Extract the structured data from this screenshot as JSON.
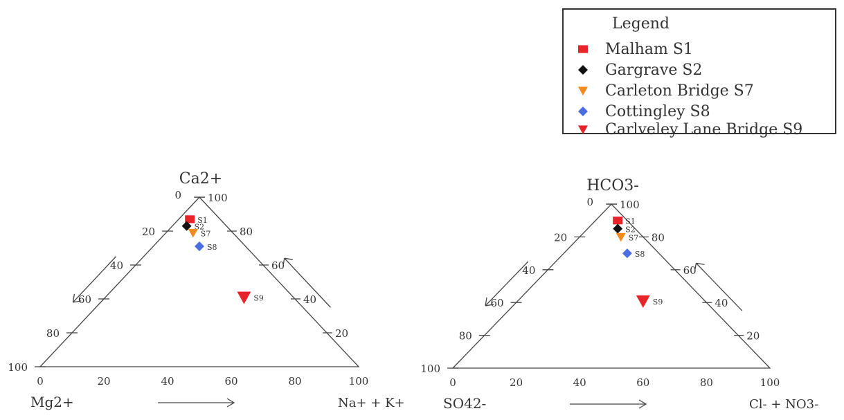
{
  "legend": {
    "title": "Legend",
    "items": [
      {
        "label": "Malham S1",
        "code": "S1",
        "color": "#e8232a",
        "marker": "square"
      },
      {
        "label": "Gargrave S2",
        "code": "S2",
        "color": "#111111",
        "marker": "diamond"
      },
      {
        "label": "Carleton Bridge S7",
        "code": "S7",
        "color": "#f28a1e",
        "marker": "triangle-down"
      },
      {
        "label": "Cottingley S8",
        "code": "S8",
        "color": "#4a6de0",
        "marker": "diamond"
      },
      {
        "label": "Carlveley Lane Bridge S9",
        "code": "S9",
        "color": "#e8232a",
        "marker": "triangle-down"
      }
    ]
  },
  "chart_data": [
    {
      "type": "scatter",
      "subtype": "ternary",
      "apex_label": "Ca2+",
      "left_label": "Mg2+",
      "right_label": "Na+ + K+",
      "left_edge_ticks": [
        "0",
        "20",
        "40",
        "60",
        "80",
        "100"
      ],
      "right_edge_ticks": [
        "100",
        "80",
        "60",
        "40",
        "20"
      ],
      "base_ticks": [
        "0",
        "20",
        "40",
        "60",
        "80",
        "100"
      ],
      "points": [
        {
          "series": "S1",
          "x": 47,
          "y": 87
        },
        {
          "series": "S2",
          "x": 46,
          "y": 83
        },
        {
          "series": "S7",
          "x": 48,
          "y": 79
        },
        {
          "series": "S8",
          "x": 50,
          "y": 71
        },
        {
          "series": "S9",
          "x": 64,
          "y": 41
        }
      ]
    },
    {
      "type": "scatter",
      "subtype": "ternary",
      "apex_label": "HCO3-",
      "left_label": "SO42-",
      "right_label": "Cl- + NO3-",
      "left_edge_ticks": [
        "0",
        "20",
        "40",
        "60",
        "80",
        "100"
      ],
      "right_edge_ticks": [
        "100",
        "80",
        "60",
        "40",
        "20"
      ],
      "base_ticks": [
        "0",
        "20",
        "40",
        "60",
        "80",
        "100"
      ],
      "points": [
        {
          "series": "S1",
          "x": 52,
          "y": 90
        },
        {
          "series": "S2",
          "x": 52,
          "y": 85
        },
        {
          "series": "S7",
          "x": 53,
          "y": 80
        },
        {
          "series": "S8",
          "x": 55,
          "y": 70
        },
        {
          "series": "S9",
          "x": 60,
          "y": 41
        }
      ]
    }
  ]
}
